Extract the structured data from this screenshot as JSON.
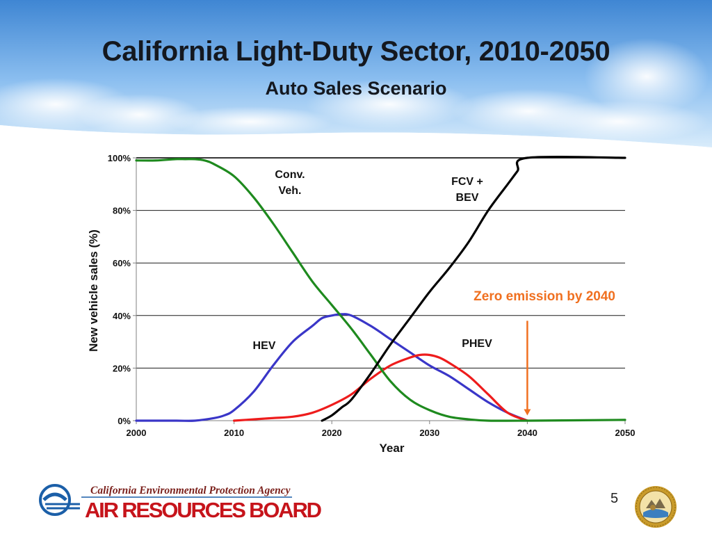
{
  "slide": {
    "title": "California Light-Duty Sector, 2010-2050",
    "subtitle": "Auto Sales Scenario",
    "page_number": "5"
  },
  "footer": {
    "agency": "California Environmental Protection Agency",
    "board": "AIR RESOURCES BOARD",
    "logo_icon": "calepa-arb-logo-icon",
    "seal_icon": "california-state-seal-icon"
  },
  "colors": {
    "sky_top": "#4a8ed6",
    "sky_bottom": "#cfe6fa",
    "conv": "#1e8a1e",
    "hev": "#3a36c8",
    "phev": "#ee1c1c",
    "fcv": "#000000",
    "annotation": "#f07020",
    "board_red": "#c6141b"
  },
  "chart_data": {
    "type": "line",
    "xlabel": "Year",
    "ylabel": "New vehicle sales (%)",
    "xlim": [
      2000,
      2050
    ],
    "ylim": [
      0,
      100
    ],
    "xticks": [
      "2000",
      "2010",
      "2020",
      "2030",
      "2040",
      "2050"
    ],
    "yticks": [
      "0%",
      "20%",
      "40%",
      "60%",
      "80%",
      "100%"
    ],
    "grid": "horizontal",
    "series": [
      {
        "key": "conv",
        "name": "Conv. Veh.",
        "label_lines": [
          "Conv.",
          "Veh."
        ],
        "x": [
          2000,
          2002,
          2004,
          2005,
          2006,
          2007,
          2008,
          2010,
          2012,
          2014,
          2016,
          2018,
          2020,
          2022,
          2024,
          2026,
          2028,
          2030,
          2032,
          2034,
          2036,
          2040,
          2050
        ],
        "y": [
          99,
          99,
          99.5,
          99.5,
          99.5,
          99,
          97.5,
          93,
          85,
          75,
          64,
          53,
          44,
          35,
          25,
          15,
          8,
          4,
          1.5,
          0.5,
          0,
          0,
          0.3
        ]
      },
      {
        "key": "hev",
        "name": "HEV",
        "label_lines": [
          "HEV"
        ],
        "x": [
          2000,
          2004,
          2006,
          2008,
          2009,
          2010,
          2012,
          2014,
          2016,
          2018,
          2019,
          2020,
          2021,
          2022,
          2024,
          2026,
          2028,
          2030,
          2032,
          2034,
          2036,
          2038,
          2040
        ],
        "y": [
          0,
          0,
          0,
          1,
          2,
          4,
          11,
          21,
          30,
          36,
          39,
          40,
          40.5,
          40,
          36,
          31,
          26,
          21,
          17,
          12,
          7,
          3,
          0
        ]
      },
      {
        "key": "phev",
        "name": "PHEV",
        "label_lines": [
          "PHEV"
        ],
        "x": [
          2010,
          2012,
          2014,
          2016,
          2018,
          2020,
          2022,
          2024,
          2026,
          2028,
          2029,
          2030,
          2031,
          2032,
          2034,
          2036,
          2038,
          2040
        ],
        "y": [
          0,
          0.5,
          1,
          1.5,
          3,
          6,
          10,
          16,
          21,
          24,
          25,
          25,
          24,
          22,
          17,
          10,
          3,
          0
        ]
      },
      {
        "key": "fcv",
        "name": "FCV + BEV",
        "label_lines": [
          "FCV +",
          "BEV"
        ],
        "x": [
          2019,
          2020,
          2021,
          2022,
          2024,
          2026,
          2028,
          2030,
          2032,
          2034,
          2036,
          2038,
          2039,
          2040,
          2050
        ],
        "y": [
          0,
          2,
          5,
          8,
          18,
          29,
          39,
          49,
          58,
          68,
          80,
          90,
          95,
          100,
          100
        ]
      }
    ],
    "annotation": {
      "text": "Zero emission by 2040",
      "arrow_x": 2040,
      "arrow_from_y": 38,
      "arrow_to_y": 2
    }
  }
}
